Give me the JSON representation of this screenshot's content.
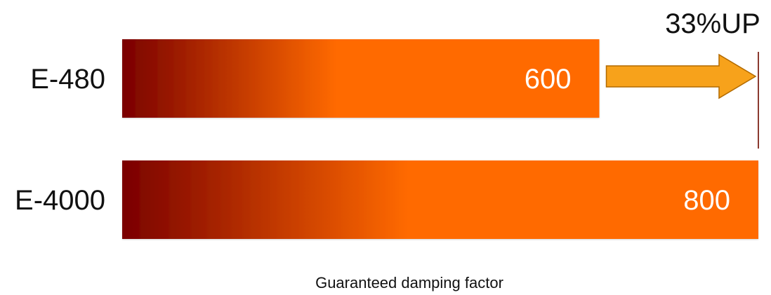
{
  "chart_data": {
    "type": "bar",
    "orientation": "horizontal",
    "categories": [
      "E-480",
      "E-4000"
    ],
    "values": [
      600,
      800
    ],
    "value_labels": [
      "600",
      "800"
    ],
    "xlabel": "Guaranteed damping factor",
    "xlim": [
      0,
      800
    ],
    "grid": false,
    "annotation": {
      "text": "33%UP",
      "from_category": "E-480",
      "to_value": 800
    },
    "colors": {
      "bar_gradient_start": "#7a0000",
      "bar_gradient_mid": "#ff6a00",
      "bar_gradient_end": "#ff6a00",
      "arrow_fill": "#f7a21b",
      "arrow_stroke": "#b26a00",
      "marker_line": "#8b3a2f"
    }
  }
}
